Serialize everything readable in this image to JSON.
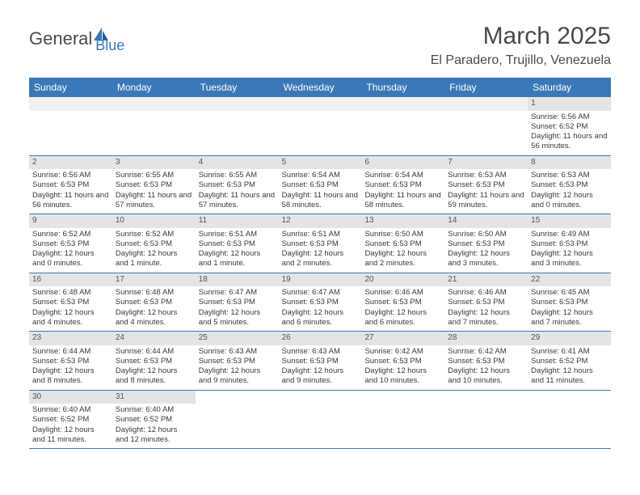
{
  "logo": {
    "part1": "General",
    "part2": "Blue"
  },
  "title": "March 2025",
  "location": "El Paradero, Trujillo, Venezuela",
  "dayNames": [
    "Sunday",
    "Monday",
    "Tuesday",
    "Wednesday",
    "Thursday",
    "Friday",
    "Saturday"
  ],
  "colors": {
    "headerBg": "#3b78b8",
    "headerText": "#ffffff",
    "cellNumBg": "#e4e4e4",
    "borderColor": "#3b78b8",
    "textColor": "#3a3a3a",
    "logoBlue": "#3b78b8",
    "logoGray": "#4a4a4a"
  },
  "firstDayOffset": 6,
  "days": [
    {
      "n": "1",
      "sunrise": "Sunrise: 6:56 AM",
      "sunset": "Sunset: 6:52 PM",
      "daylight": "Daylight: 11 hours and 56 minutes."
    },
    {
      "n": "2",
      "sunrise": "Sunrise: 6:56 AM",
      "sunset": "Sunset: 6:53 PM",
      "daylight": "Daylight: 11 hours and 56 minutes."
    },
    {
      "n": "3",
      "sunrise": "Sunrise: 6:55 AM",
      "sunset": "Sunset: 6:53 PM",
      "daylight": "Daylight: 11 hours and 57 minutes."
    },
    {
      "n": "4",
      "sunrise": "Sunrise: 6:55 AM",
      "sunset": "Sunset: 6:53 PM",
      "daylight": "Daylight: 11 hours and 57 minutes."
    },
    {
      "n": "5",
      "sunrise": "Sunrise: 6:54 AM",
      "sunset": "Sunset: 6:53 PM",
      "daylight": "Daylight: 11 hours and 58 minutes."
    },
    {
      "n": "6",
      "sunrise": "Sunrise: 6:54 AM",
      "sunset": "Sunset: 6:53 PM",
      "daylight": "Daylight: 11 hours and 58 minutes."
    },
    {
      "n": "7",
      "sunrise": "Sunrise: 6:53 AM",
      "sunset": "Sunset: 6:53 PM",
      "daylight": "Daylight: 11 hours and 59 minutes."
    },
    {
      "n": "8",
      "sunrise": "Sunrise: 6:53 AM",
      "sunset": "Sunset: 6:53 PM",
      "daylight": "Daylight: 12 hours and 0 minutes."
    },
    {
      "n": "9",
      "sunrise": "Sunrise: 6:52 AM",
      "sunset": "Sunset: 6:53 PM",
      "daylight": "Daylight: 12 hours and 0 minutes."
    },
    {
      "n": "10",
      "sunrise": "Sunrise: 6:52 AM",
      "sunset": "Sunset: 6:53 PM",
      "daylight": "Daylight: 12 hours and 1 minute."
    },
    {
      "n": "11",
      "sunrise": "Sunrise: 6:51 AM",
      "sunset": "Sunset: 6:53 PM",
      "daylight": "Daylight: 12 hours and 1 minute."
    },
    {
      "n": "12",
      "sunrise": "Sunrise: 6:51 AM",
      "sunset": "Sunset: 6:53 PM",
      "daylight": "Daylight: 12 hours and 2 minutes."
    },
    {
      "n": "13",
      "sunrise": "Sunrise: 6:50 AM",
      "sunset": "Sunset: 6:53 PM",
      "daylight": "Daylight: 12 hours and 2 minutes."
    },
    {
      "n": "14",
      "sunrise": "Sunrise: 6:50 AM",
      "sunset": "Sunset: 6:53 PM",
      "daylight": "Daylight: 12 hours and 3 minutes."
    },
    {
      "n": "15",
      "sunrise": "Sunrise: 6:49 AM",
      "sunset": "Sunset: 6:53 PM",
      "daylight": "Daylight: 12 hours and 3 minutes."
    },
    {
      "n": "16",
      "sunrise": "Sunrise: 6:48 AM",
      "sunset": "Sunset: 6:53 PM",
      "daylight": "Daylight: 12 hours and 4 minutes."
    },
    {
      "n": "17",
      "sunrise": "Sunrise: 6:48 AM",
      "sunset": "Sunset: 6:53 PM",
      "daylight": "Daylight: 12 hours and 4 minutes."
    },
    {
      "n": "18",
      "sunrise": "Sunrise: 6:47 AM",
      "sunset": "Sunset: 6:53 PM",
      "daylight": "Daylight: 12 hours and 5 minutes."
    },
    {
      "n": "19",
      "sunrise": "Sunrise: 6:47 AM",
      "sunset": "Sunset: 6:53 PM",
      "daylight": "Daylight: 12 hours and 6 minutes."
    },
    {
      "n": "20",
      "sunrise": "Sunrise: 6:46 AM",
      "sunset": "Sunset: 6:53 PM",
      "daylight": "Daylight: 12 hours and 6 minutes."
    },
    {
      "n": "21",
      "sunrise": "Sunrise: 6:46 AM",
      "sunset": "Sunset: 6:53 PM",
      "daylight": "Daylight: 12 hours and 7 minutes."
    },
    {
      "n": "22",
      "sunrise": "Sunrise: 6:45 AM",
      "sunset": "Sunset: 6:53 PM",
      "daylight": "Daylight: 12 hours and 7 minutes."
    },
    {
      "n": "23",
      "sunrise": "Sunrise: 6:44 AM",
      "sunset": "Sunset: 6:53 PM",
      "daylight": "Daylight: 12 hours and 8 minutes."
    },
    {
      "n": "24",
      "sunrise": "Sunrise: 6:44 AM",
      "sunset": "Sunset: 6:53 PM",
      "daylight": "Daylight: 12 hours and 8 minutes."
    },
    {
      "n": "25",
      "sunrise": "Sunrise: 6:43 AM",
      "sunset": "Sunset: 6:53 PM",
      "daylight": "Daylight: 12 hours and 9 minutes."
    },
    {
      "n": "26",
      "sunrise": "Sunrise: 6:43 AM",
      "sunset": "Sunset: 6:53 PM",
      "daylight": "Daylight: 12 hours and 9 minutes."
    },
    {
      "n": "27",
      "sunrise": "Sunrise: 6:42 AM",
      "sunset": "Sunset: 6:53 PM",
      "daylight": "Daylight: 12 hours and 10 minutes."
    },
    {
      "n": "28",
      "sunrise": "Sunrise: 6:42 AM",
      "sunset": "Sunset: 6:53 PM",
      "daylight": "Daylight: 12 hours and 10 minutes."
    },
    {
      "n": "29",
      "sunrise": "Sunrise: 6:41 AM",
      "sunset": "Sunset: 6:52 PM",
      "daylight": "Daylight: 12 hours and 11 minutes."
    },
    {
      "n": "30",
      "sunrise": "Sunrise: 6:40 AM",
      "sunset": "Sunset: 6:52 PM",
      "daylight": "Daylight: 12 hours and 11 minutes."
    },
    {
      "n": "31",
      "sunrise": "Sunrise: 6:40 AM",
      "sunset": "Sunset: 6:52 PM",
      "daylight": "Daylight: 12 hours and 12 minutes."
    }
  ]
}
